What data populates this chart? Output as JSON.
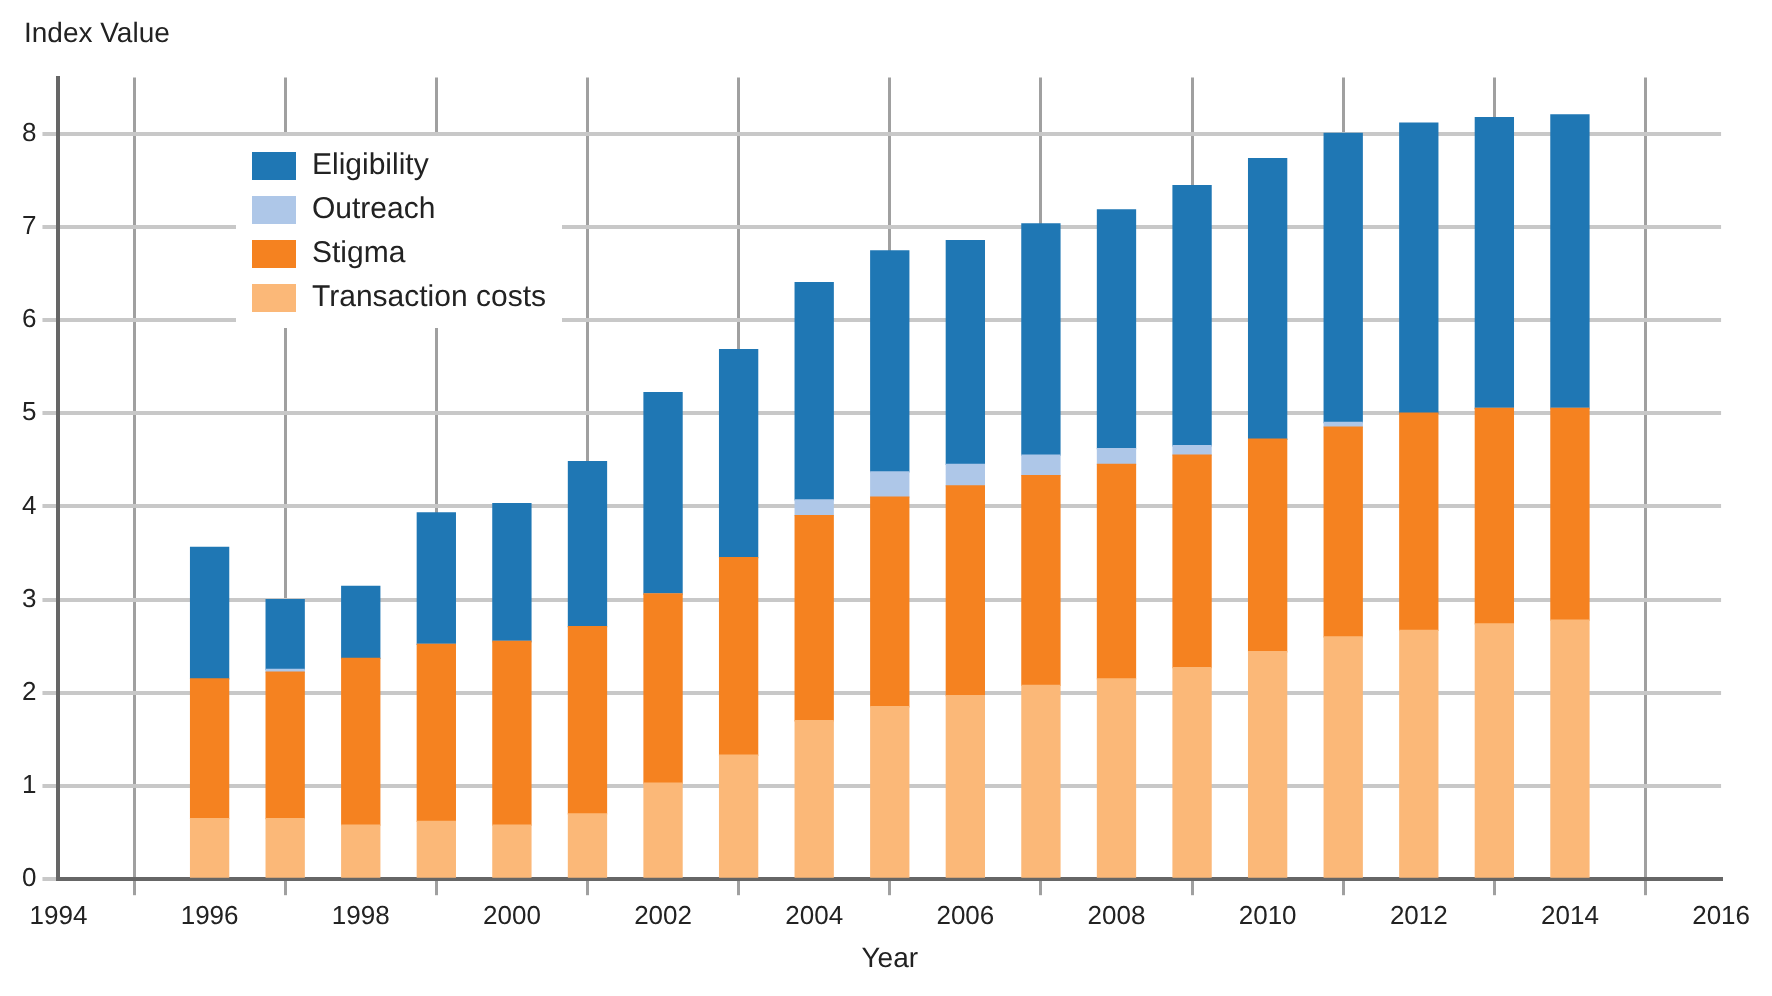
{
  "chart_data": {
    "type": "bar",
    "stacked": true,
    "xlabel": "Year",
    "ylabel": "Index Value",
    "x": [
      1996,
      1997,
      1998,
      1999,
      2000,
      2001,
      2002,
      2003,
      2004,
      2005,
      2006,
      2007,
      2008,
      2009,
      2010,
      2011,
      2012,
      2013,
      2014
    ],
    "xlim": [
      1994,
      2016
    ],
    "xticks": [
      1994,
      1996,
      1998,
      2000,
      2002,
      2004,
      2006,
      2008,
      2010,
      2012,
      2014,
      2016
    ],
    "ylim": [
      0,
      8.6
    ],
    "yticks": [
      0,
      1,
      2,
      3,
      4,
      5,
      6,
      7,
      8
    ],
    "grid": true,
    "legend": "top left",
    "series": [
      {
        "name": "Transaction costs",
        "color": "#fbb878",
        "values": [
          0.65,
          0.65,
          0.58,
          0.62,
          0.58,
          0.7,
          1.03,
          1.33,
          1.7,
          1.85,
          1.97,
          2.08,
          2.15,
          2.27,
          2.44,
          2.6,
          2.67,
          2.74,
          2.78
        ]
      },
      {
        "name": "Stigma",
        "color": "#f58220",
        "values": [
          1.5,
          1.57,
          1.79,
          1.9,
          1.97,
          2.01,
          2.03,
          2.12,
          2.2,
          2.25,
          2.25,
          2.25,
          2.3,
          2.28,
          2.28,
          2.25,
          2.33,
          2.31,
          2.27
        ]
      },
      {
        "name": "Outreach",
        "color": "#aec7e8",
        "values": [
          null,
          0.03,
          null,
          0,
          0,
          0,
          0,
          null,
          0.17,
          0.27,
          0.23,
          0.22,
          0.17,
          0.1,
          null,
          0.05,
          null,
          0,
          0
        ]
      },
      {
        "name": "Eligibility",
        "color": "#1f77b4",
        "values": [
          1.41,
          0.75,
          0.77,
          1.41,
          1.48,
          1.77,
          2.16,
          2.23,
          2.33,
          2.37,
          2.4,
          2.48,
          2.56,
          2.79,
          3.01,
          3.1,
          3.11,
          3.12,
          3.15
        ]
      }
    ]
  }
}
